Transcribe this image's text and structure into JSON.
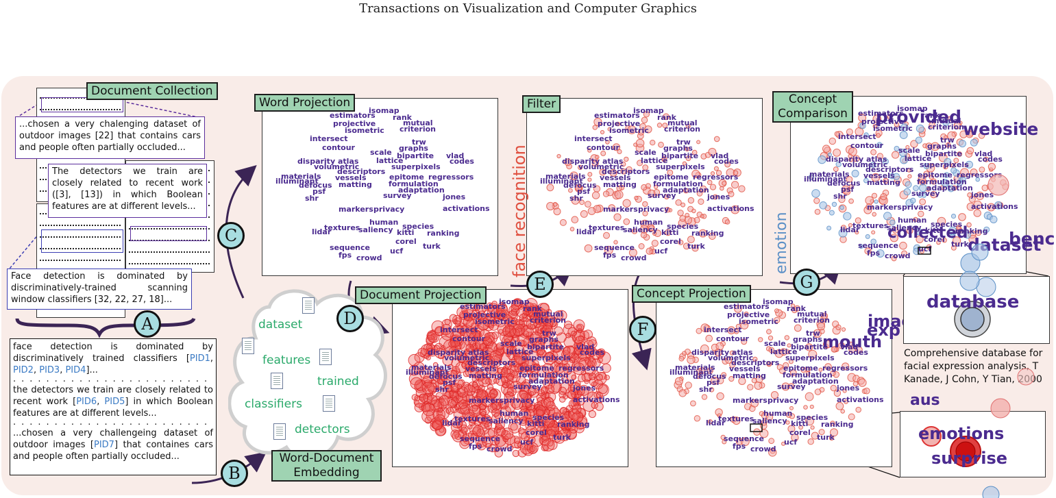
{
  "header": "Transactions on Visualization and Computer Graphics",
  "labels": {
    "document_collection": "Document Collection",
    "word_projection": "Word Projection",
    "filter": "Filter",
    "concept_comparison_1": "Concept",
    "concept_comparison_2": "Comparison",
    "document_projection": "Document Projection",
    "concept_projection": "Concept Projection",
    "wde_1": "Word-Document",
    "wde_2": "Embedding"
  },
  "steps": [
    "A",
    "B",
    "C",
    "D",
    "E",
    "F",
    "G"
  ],
  "snippets": {
    "cars": "...chosen a very chalenging dataset of outdoor images [22] that contains cars and people often partially occluded...",
    "detectors": "The detectors we train are closely related to recent work ([3], [13]) in which Boolean features are at different levels...",
    "face": "Face detection is dominated by discriminatively-trained scanning window classifiers [32, 22, 27, 18]..."
  },
  "indexed_text": {
    "p1_a": "face detection is dominated by discriminatively trained classifiers [",
    "pid1": "PID1",
    "pid2": "PID2",
    "pid3": "PID3",
    "pid4": "PID4",
    "p1_end": "]...",
    "p2_a": "the detectors we train are closely related to recent work [",
    "pid6": "PID6",
    "pid5": "PID5",
    "p2_b": "] in which Boolean features are at different levels...",
    "p3_a": "...chosen a very challengeing dataset of outdoor images [",
    "pid7": "PID7",
    "p3_b": "] that containes cars and people often partially occluded..."
  },
  "cloud_words": [
    "dataset",
    "features",
    "trained",
    "classifiers",
    "detectors"
  ],
  "concepts": {
    "face": "face recognition",
    "emotion": "emotion"
  },
  "vocab": [
    "isomap",
    "rank",
    "estimators",
    "projective",
    "mutual",
    "isometric",
    "criterion",
    "intersect",
    "trw",
    "contour",
    "scale",
    "graphs",
    "vlad",
    "bipartite",
    "disparity atlas",
    "lattice",
    "codes",
    "volumetric",
    "superpixels",
    "descriptors",
    "materials",
    "vessels",
    "epitome",
    "regressors",
    "illuminant",
    "matting",
    "formulation",
    "defocus",
    "adaptation",
    "psf",
    "survey",
    "jones",
    "shr",
    "markers",
    "privacy",
    "activations",
    "human",
    "species",
    "textures",
    "saliency",
    "lidar",
    "kitti",
    "ranking",
    "corel",
    "sequence",
    "turk",
    "fps",
    "ucf",
    "crowd"
  ],
  "comparison_words": [
    "provided",
    "website",
    "collected",
    "dataset",
    "benc"
  ],
  "concept_words": [
    "images",
    "exp",
    "mouth",
    "aus"
  ],
  "zoom_top_word": "database",
  "zoom_bottom_words": [
    "emotions",
    "surprise"
  ],
  "citation": "Comprehensive database for facial expression analysis, T Kanade, J Cohn, Y Tian, 2000",
  "colors": {
    "panel": "#f9ece8",
    "label": "#9fd3b2",
    "step": "#a8dde0",
    "word": "#4b2b8f",
    "cloud_word": "#2aa96a",
    "face": "#e05040",
    "emotion": "#5a8fc6"
  }
}
